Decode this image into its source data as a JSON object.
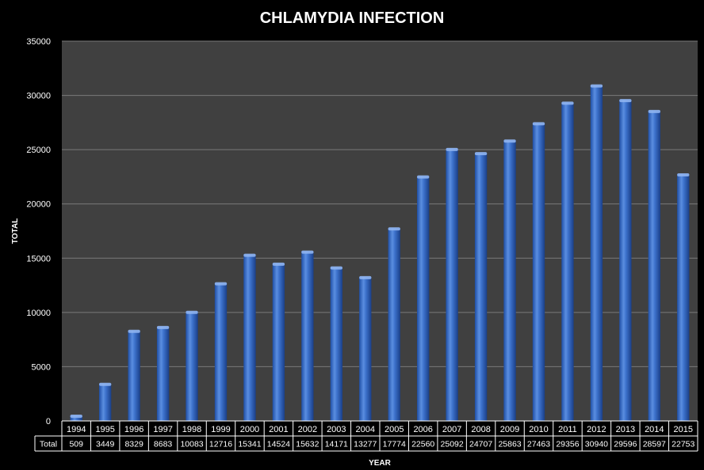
{
  "chart_data": {
    "type": "bar",
    "title": "CHLAMYDIA INFECTION",
    "xlabel": "YEAR",
    "ylabel": "TOTAL",
    "ylim": [
      0,
      35000
    ],
    "yticks": [
      0,
      5000,
      10000,
      15000,
      20000,
      25000,
      30000,
      35000
    ],
    "grid": true,
    "categories": [
      "1994",
      "1995",
      "1996",
      "1997",
      "1998",
      "1999",
      "2000",
      "2001",
      "2002",
      "2003",
      "2004",
      "2005",
      "2006",
      "2007",
      "2008",
      "2009",
      "2010",
      "2011",
      "2012",
      "2013",
      "2014",
      "2015"
    ],
    "series": [
      {
        "name": "Total",
        "values": [
          509,
          3449,
          8329,
          8683,
          10083,
          12716,
          15341,
          14524,
          15632,
          14171,
          13277,
          17774,
          22560,
          25092,
          24707,
          25863,
          27463,
          29356,
          30940,
          29596,
          28597,
          22753
        ]
      }
    ],
    "data_table": true,
    "colors": {
      "plot_background": "#404040",
      "bar": "#3a6fc7",
      "bar_highlight": "#8fb4f0",
      "gridline": "#7a7a7a",
      "page_background": "#000000",
      "text": "#ffffff"
    }
  }
}
